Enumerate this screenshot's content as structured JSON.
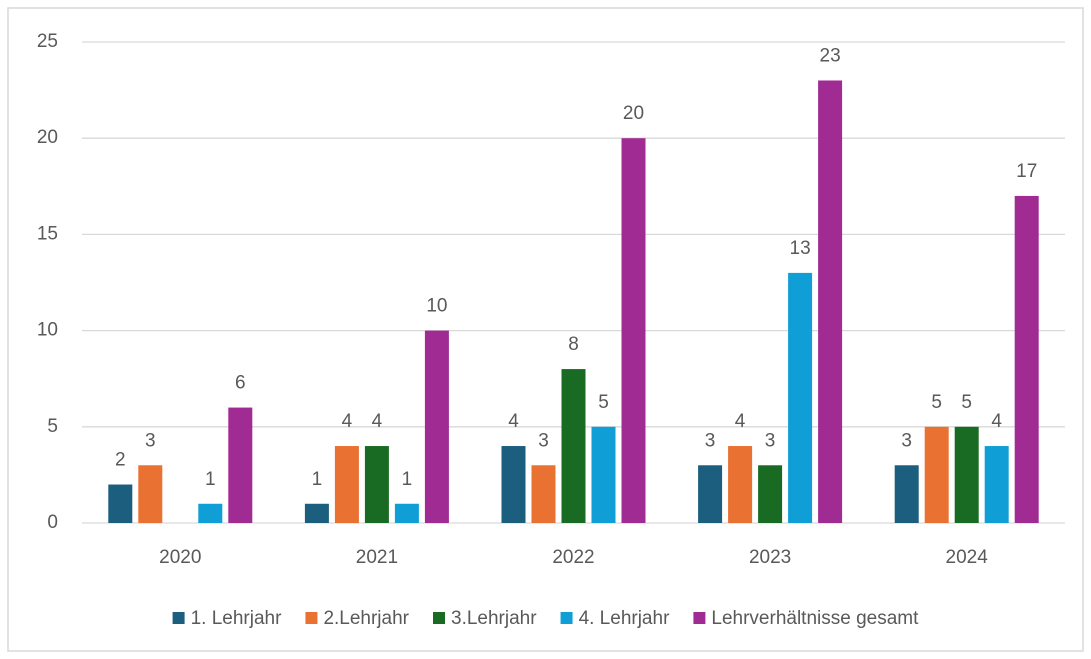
{
  "chart_data": {
    "type": "bar",
    "categories": [
      "2020",
      "2021",
      "2022",
      "2023",
      "2024"
    ],
    "series": [
      {
        "name": "1. Lehrjahr",
        "color": "#1b5e7e",
        "values": [
          2,
          1,
          4,
          3,
          3
        ]
      },
      {
        "name": "2.Lehrjahr",
        "color": "#e97132",
        "values": [
          3,
          4,
          3,
          4,
          5
        ]
      },
      {
        "name": "3.Lehrjahr",
        "color": "#196b24",
        "values": [
          null,
          4,
          8,
          3,
          5
        ]
      },
      {
        "name": "4. Lehrjahr",
        "color": "#0f9ed5",
        "values": [
          1,
          1,
          5,
          13,
          4
        ]
      },
      {
        "name": "Lehrverhältnisse gesamt",
        "color": "#a02b93",
        "values": [
          6,
          10,
          20,
          23,
          17
        ]
      }
    ],
    "ylim": [
      0,
      25
    ],
    "yticks": [
      0,
      5,
      10,
      15,
      20,
      25
    ],
    "grid": true,
    "legend": "bottom"
  }
}
